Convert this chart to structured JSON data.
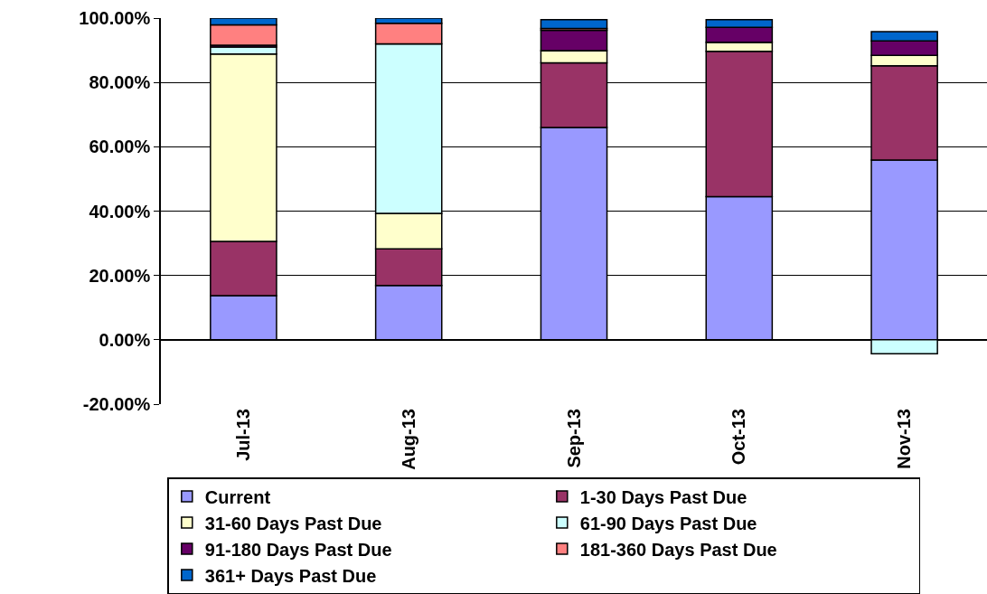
{
  "chart_data": {
    "type": "bar",
    "stacked": true,
    "categories": [
      "Jul-13",
      "Aug-13",
      "Sep-13",
      "Oct-13",
      "Nov-13"
    ],
    "series": [
      {
        "name": "Current",
        "color": "#9999ff",
        "values": [
          13.7,
          16.9,
          66.0,
          44.5,
          55.9
        ]
      },
      {
        "name": "1-30 Days Past Due",
        "color": "#993366",
        "values": [
          16.9,
          11.4,
          20.1,
          45.2,
          29.3
        ]
      },
      {
        "name": "31-60 Days Past Due",
        "color": "#ffffcc",
        "values": [
          58.2,
          11.0,
          3.8,
          2.8,
          3.2
        ]
      },
      {
        "name": "61-90 Days Past Due",
        "color": "#ccffff",
        "values": [
          2.2,
          52.7,
          0,
          0,
          -4.3
        ]
      },
      {
        "name": "91-180 Days Past Due",
        "color": "#660066",
        "values": [
          0.6,
          0,
          6.3,
          4.6,
          4.5
        ]
      },
      {
        "name": "181-360 Days Past Due",
        "color": "#ff8080",
        "values": [
          6.3,
          6.4,
          0.6,
          0,
          0
        ]
      },
      {
        "name": "361+ Days Past Due",
        "color": "#0066cc",
        "values": [
          2.1,
          1.6,
          2.7,
          2.4,
          2.9
        ]
      }
    ],
    "ylim": [
      -20,
      100
    ],
    "yticks": [
      {
        "value": -20,
        "label": "-20.00%"
      },
      {
        "value": 0,
        "label": "0.00%"
      },
      {
        "value": 20,
        "label": "20.00%"
      },
      {
        "value": 40,
        "label": "40.00%"
      },
      {
        "value": 60,
        "label": "60.00%"
      },
      {
        "value": 80,
        "label": "80.00%"
      },
      {
        "value": 100,
        "label": "100.00%"
      }
    ],
    "grid": "y",
    "legend": "bottom"
  }
}
